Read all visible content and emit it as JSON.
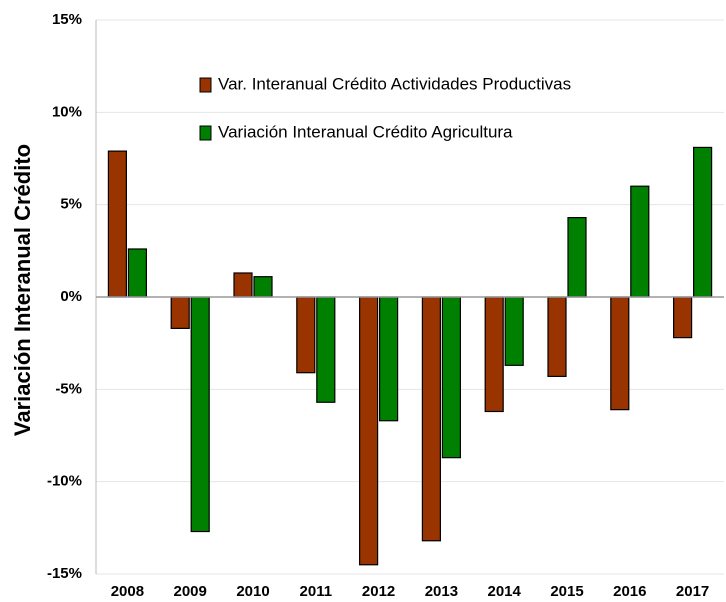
{
  "chart_data": {
    "type": "bar",
    "y_label": "Variación Interanual Crédito",
    "categories": [
      "2008",
      "2009",
      "2010",
      "2011",
      "2012",
      "2013",
      "2014",
      "2015",
      "2016",
      "2017"
    ],
    "series": [
      {
        "name": "Var. Interanual Crédito Actividades Productivas",
        "color": "#993300",
        "values": [
          7.9,
          -1.7,
          1.3,
          -4.1,
          -14.5,
          -13.2,
          -6.2,
          -4.3,
          -6.1,
          -2.2
        ]
      },
      {
        "name": "Variación Interanual Crédito Agricultura",
        "color": "#008000",
        "values": [
          2.6,
          -12.7,
          1.1,
          -5.7,
          -6.7,
          -8.7,
          -3.7,
          4.3,
          6.0,
          8.1
        ]
      }
    ],
    "ylim": [
      -15,
      15
    ],
    "yticks": [
      {
        "value": -15,
        "label": "-15%"
      },
      {
        "value": -10,
        "label": "-10%"
      },
      {
        "value": -5,
        "label": "-5%"
      },
      {
        "value": 0,
        "label": "0%"
      },
      {
        "value": 5,
        "label": "5%"
      },
      {
        "value": 10,
        "label": "10%"
      },
      {
        "value": 15,
        "label": "15%"
      }
    ],
    "grid": true,
    "legend": "top"
  }
}
